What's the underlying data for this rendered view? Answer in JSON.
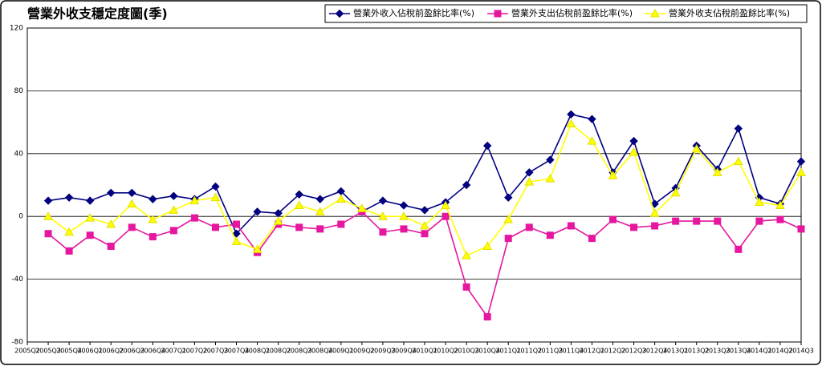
{
  "chart_data": {
    "type": "line",
    "title": "營業外收支穩定度圖(季)",
    "categories": [
      "2005Q2",
      "2005Q3",
      "2005Q4",
      "2006Q1",
      "2006Q2",
      "2006Q3",
      "2006Q4",
      "2007Q1",
      "2007Q2",
      "2007Q3",
      "2007Q4",
      "2008Q1",
      "2008Q2",
      "2008Q3",
      "2008Q4",
      "2009Q1",
      "2009Q2",
      "2009Q3",
      "2009Q4",
      "2010Q1",
      "2010Q2",
      "2010Q3",
      "2010Q4",
      "2011Q1",
      "2011Q2",
      "2011Q3",
      "2011Q4",
      "2012Q1",
      "2012Q2",
      "2012Q3",
      "2012Q4",
      "2013Q1",
      "2013Q2",
      "2013Q3",
      "2013Q4",
      "2014Q1",
      "2014Q2",
      "2014Q3"
    ],
    "series": [
      {
        "name": "營業外收入佔稅前盈餘比率(%)",
        "color": "#000080",
        "marker": "diamond",
        "values": [
          null,
          10,
          12,
          10,
          15,
          15,
          11,
          13,
          11,
          19,
          -11,
          3,
          2,
          14,
          11,
          16,
          3,
          10,
          7,
          4,
          9,
          20,
          45,
          12,
          28,
          36,
          65,
          62,
          28,
          48,
          8,
          18,
          45,
          30,
          56,
          12,
          8,
          35
        ]
      },
      {
        "name": "營業外支出佔稅前盈餘比率(%)",
        "color": "#e6169f",
        "marker": "square",
        "values": [
          null,
          -11,
          -22,
          -12,
          -19,
          -7,
          -13,
          -9,
          -1,
          -7,
          -5,
          -23,
          -5,
          -7,
          -8,
          -5,
          3,
          -10,
          -8,
          -11,
          0,
          -45,
          -64,
          -14,
          -7,
          -12,
          -6,
          -14,
          -2,
          -7,
          -6,
          -3,
          -3,
          -3,
          -21,
          -3,
          -2,
          -8
        ]
      },
      {
        "name": "營業外收支佔稅前盈餘比率(%)",
        "color": "#ffff00",
        "marker": "triangle",
        "values": [
          null,
          0,
          -10,
          -1,
          -5,
          8,
          -2,
          4,
          10,
          12,
          -16,
          -21,
          -3,
          7,
          3,
          11,
          5,
          0,
          0,
          -6,
          7,
          -25,
          -19,
          -2,
          22,
          24,
          59,
          48,
          26,
          41,
          2,
          15,
          43,
          28,
          35,
          9,
          7,
          28
        ]
      }
    ],
    "ylim": [
      -80,
      120
    ],
    "yticks": [
      -80,
      -40,
      0,
      40,
      80,
      120
    ],
    "grid": true
  }
}
